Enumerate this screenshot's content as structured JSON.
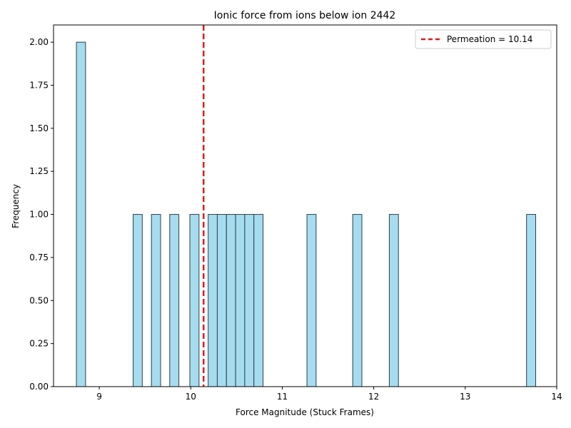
{
  "chart_data": {
    "type": "bar",
    "title": "Ionic force from ions below ion 2442",
    "xlabel": "Force Magnitude (Stuck Frames)",
    "ylabel": "Frequency",
    "xlim": [
      8.5,
      14.0
    ],
    "ylim": [
      0,
      2.1
    ],
    "xticks": [
      9,
      10,
      11,
      12,
      13,
      14
    ],
    "yticks": [
      0.0,
      0.25,
      0.5,
      0.75,
      1.0,
      1.25,
      1.5,
      1.75,
      2.0
    ],
    "bin_width": 0.1,
    "bars": [
      {
        "x": 8.8,
        "value": 2
      },
      {
        "x": 9.42,
        "value": 1
      },
      {
        "x": 9.62,
        "value": 1
      },
      {
        "x": 9.82,
        "value": 1
      },
      {
        "x": 10.04,
        "value": 1
      },
      {
        "x": 10.24,
        "value": 1
      },
      {
        "x": 10.34,
        "value": 1
      },
      {
        "x": 10.44,
        "value": 1
      },
      {
        "x": 10.54,
        "value": 1
      },
      {
        "x": 10.64,
        "value": 1
      },
      {
        "x": 10.74,
        "value": 1
      },
      {
        "x": 11.32,
        "value": 1
      },
      {
        "x": 11.82,
        "value": 1
      },
      {
        "x": 12.22,
        "value": 1
      },
      {
        "x": 13.72,
        "value": 1
      }
    ],
    "bar_color": "#a6dcef",
    "bar_edge_color": "#2f3f46",
    "reference_line": {
      "x": 10.14,
      "label": "Permeation = 10.14",
      "color": "#e41a1c",
      "style": "dashed"
    },
    "legend_position": "top-right",
    "grid": false
  }
}
